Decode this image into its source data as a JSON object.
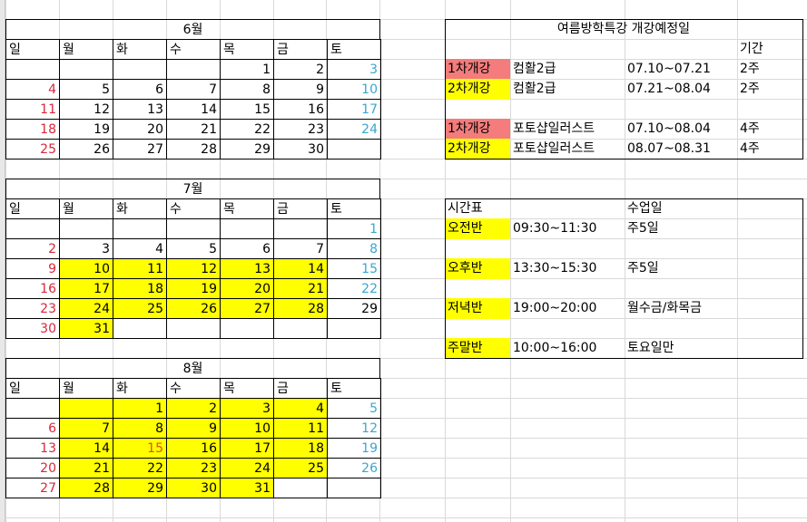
{
  "colors": {
    "sunday": "#d9263c",
    "saturday": "#3aa6cf",
    "holiday": "#e0501a",
    "highlight": "#ffff00",
    "first_round": "#f47c7c",
    "second_round": "#ffff00"
  },
  "calendars": [
    {
      "title": "6월",
      "weekdays": [
        "일",
        "월",
        "화",
        "수",
        "목",
        "금",
        "토"
      ],
      "rows": [
        [
          "",
          "",
          "",
          "",
          "1",
          "2",
          "3"
        ],
        [
          "4",
          "5",
          "6",
          "7",
          "8",
          "9",
          "10"
        ],
        [
          "11",
          "12",
          "13",
          "14",
          "15",
          "16",
          "17"
        ],
        [
          "18",
          "19",
          "20",
          "21",
          "22",
          "23",
          "24"
        ],
        [
          "25",
          "26",
          "27",
          "28",
          "29",
          "30",
          ""
        ]
      ],
      "highlight": [
        "0000000",
        "0000000",
        "0000000",
        "0000000",
        "0000000"
      ],
      "overrides": []
    },
    {
      "title": "7월",
      "weekdays": [
        "일",
        "월",
        "화",
        "수",
        "목",
        "금",
        "토"
      ],
      "rows": [
        [
          "",
          "",
          "",
          "",
          "",
          "",
          "1"
        ],
        [
          "2",
          "3",
          "4",
          "5",
          "6",
          "7",
          "8"
        ],
        [
          "9",
          "10",
          "11",
          "12",
          "13",
          "14",
          "15"
        ],
        [
          "16",
          "17",
          "18",
          "19",
          "20",
          "21",
          "22"
        ],
        [
          "23",
          "24",
          "25",
          "26",
          "27",
          "28",
          "29"
        ],
        [
          "30",
          "31",
          "",
          "",
          "",
          "",
          ""
        ]
      ],
      "highlight": [
        "0000000",
        "0000000",
        "0111110",
        "0111110",
        "0111110",
        "0100000"
      ],
      "overrides": [
        {
          "row": 4,
          "col": 6,
          "tone": "plain"
        }
      ]
    },
    {
      "title": "8월",
      "weekdays": [
        "일",
        "월",
        "화",
        "수",
        "목",
        "금",
        "토"
      ],
      "rows": [
        [
          "",
          "",
          "1",
          "2",
          "3",
          "4",
          "5"
        ],
        [
          "6",
          "7",
          "8",
          "9",
          "10",
          "11",
          "12"
        ],
        [
          "13",
          "14",
          "15",
          "16",
          "17",
          "18",
          "19"
        ],
        [
          "20",
          "21",
          "22",
          "23",
          "24",
          "25",
          "26"
        ],
        [
          "27",
          "28",
          "29",
          "30",
          "31",
          "",
          ""
        ]
      ],
      "highlight": [
        "0111110",
        "0111110",
        "0111110",
        "0111110",
        "0111100"
      ],
      "overrides": [
        {
          "row": 2,
          "col": 2,
          "tone": "holiday"
        }
      ]
    }
  ],
  "courses": {
    "title": "여름방학특강 개강예정일",
    "period_header": "기간",
    "rows": [
      {
        "round": "1차개강",
        "round_tone": "first_round",
        "course": "컴활2급",
        "dates": "07.10~07.21",
        "period": "2주"
      },
      {
        "round": "2차개강",
        "round_tone": "second_round",
        "course": "컴활2급",
        "dates": "07.21~08.04",
        "period": "2주"
      },
      null,
      {
        "round": "1차개강",
        "round_tone": "first_round",
        "course": "포토샵일러스트",
        "dates": "07.10~08.04",
        "period": "4주"
      },
      {
        "round": "2차개강",
        "round_tone": "second_round",
        "course": "포토샵일러스트",
        "dates": "08.07~08.31",
        "period": "4주"
      }
    ]
  },
  "timetable": {
    "header": "시간표",
    "days_header": "수업일",
    "rows": [
      {
        "name": "오전반",
        "time": "09:30~11:30",
        "days": "주5일"
      },
      null,
      {
        "name": "오후반",
        "time": "13:30~15:30",
        "days": "주5일"
      },
      null,
      {
        "name": "저녁반",
        "time": "19:00~20:00",
        "days": "월수금/화목금"
      },
      null,
      {
        "name": "주말반",
        "time": "10:00~16:00",
        "days": "토요일만"
      }
    ]
  }
}
